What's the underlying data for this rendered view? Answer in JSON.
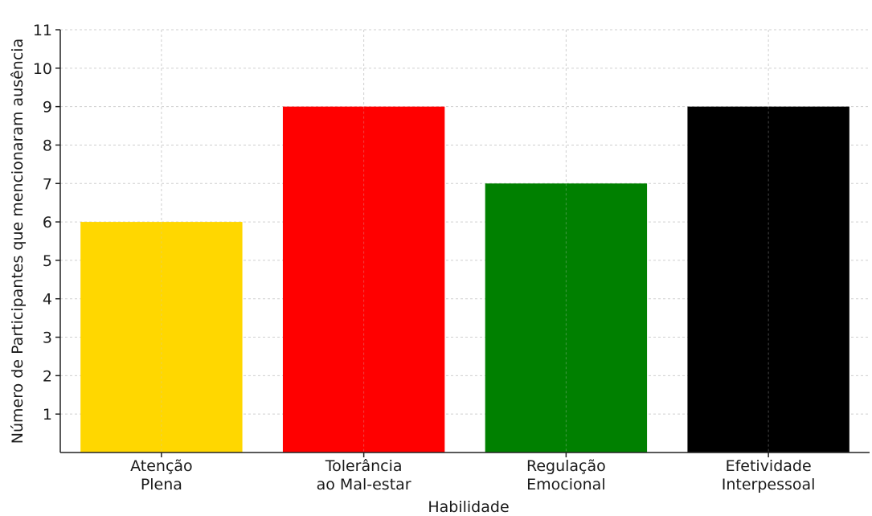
{
  "chart_data": {
    "type": "bar",
    "categories": [
      [
        "Atenção",
        "Plena"
      ],
      [
        "Tolerância",
        "ao Mal-estar"
      ],
      [
        "Regulação",
        "Emocional"
      ],
      [
        "Efetividade",
        "Interpessoal"
      ]
    ],
    "values": [
      6,
      9,
      7,
      9
    ],
    "colors": [
      "#ffd700",
      "#ff0000",
      "#008000",
      "#000000"
    ],
    "xlabel": "Habilidade",
    "ylabel": "Número de Participantes que mencionaram ausência",
    "ylim": [
      0,
      11
    ],
    "yticks": [
      1,
      2,
      3,
      4,
      5,
      6,
      7,
      8,
      9,
      10,
      11
    ],
    "grid": true
  }
}
